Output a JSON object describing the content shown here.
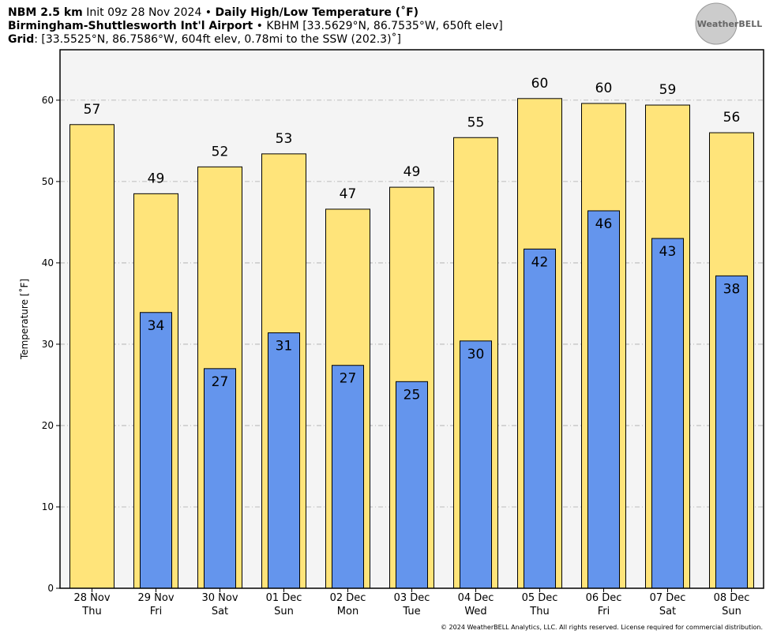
{
  "chart_data": {
    "type": "bar",
    "title_parts": [
      "NBM 2.5 km",
      "Init 09z 28 Nov 2024 •",
      "Daily High/Low Temperature (˚F)"
    ],
    "subtitle_parts": [
      "Birmingham-Shuttlesworth Int'l Airport",
      "• KBHM [33.5629°N, 86.7535°W, 650ft elev]"
    ],
    "grid_parts": [
      "Grid",
      ": [33.5525°N, 86.7586°W, 604ft elev, 0.78mi to the SSW (202.3)˚]"
    ],
    "logo": "WeatherBELL",
    "ylabel": "Temperature [˚F]",
    "footer": "© 2024 WeatherBELL Analytics, LLC. All rights reserved. License required for commercial distribution.",
    "categories": [
      "28 Nov",
      "29 Nov",
      "30 Nov",
      "01 Dec",
      "02 Dec",
      "03 Dec",
      "04 Dec",
      "05 Dec",
      "06 Dec",
      "07 Dec",
      "08 Dec"
    ],
    "category_days": [
      "Thu",
      "Fri",
      "Sat",
      "Sun",
      "Mon",
      "Tue",
      "Wed",
      "Thu",
      "Fri",
      "Sat",
      "Sun"
    ],
    "series": [
      {
        "name": "High",
        "color": "#ffe47a",
        "values": [
          57.0,
          48.5,
          51.8,
          53.4,
          46.6,
          49.3,
          55.4,
          60.2,
          59.6,
          59.4,
          56.0
        ],
        "value_labels": [
          "57",
          "49",
          "52",
          "53",
          "47",
          "49",
          "55",
          "60",
          "60",
          "59",
          "56"
        ]
      },
      {
        "name": "Low",
        "color": "#6495ed",
        "values": [
          null,
          33.9,
          27.0,
          31.4,
          27.4,
          25.4,
          30.4,
          41.7,
          46.4,
          43.0,
          38.4
        ],
        "value_labels": [
          null,
          "34",
          "27",
          "31",
          "27",
          "25",
          "30",
          "42",
          "46",
          "43",
          "38"
        ]
      }
    ],
    "ylim": [
      0,
      66.2
    ],
    "yticks": [
      0,
      10,
      20,
      30,
      40,
      50,
      60
    ],
    "grid": true
  }
}
